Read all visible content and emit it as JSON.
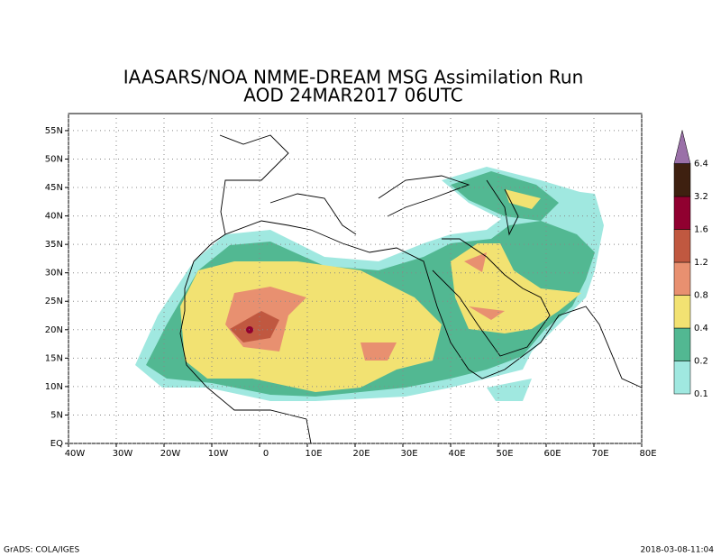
{
  "title": [
    "IAASARS/NOA NMME-DREAM MSG Assimilation Run",
    "AOD  24MAR2017 06UTC"
  ],
  "map": {
    "xlim": [
      -40,
      80
    ],
    "ylim": [
      0,
      58
    ],
    "lon_ticks": [
      {
        "value": -40,
        "label": "40W"
      },
      {
        "value": -30,
        "label": "30W"
      },
      {
        "value": -20,
        "label": "20W"
      },
      {
        "value": -10,
        "label": "10W"
      },
      0,
      {
        "value": 10,
        "label": "10E"
      },
      {
        "value": 20,
        "label": "20E"
      },
      {
        "value": 30,
        "label": "30E"
      },
      {
        "value": 40,
        "label": "40E"
      },
      {
        "value": 50,
        "label": "50E"
      },
      {
        "value": 60,
        "label": "60E"
      },
      {
        "value": 70,
        "label": "70E"
      },
      {
        "value": 80,
        "label": "80E"
      }
    ],
    "lat_ticks": [
      {
        "value": 0,
        "label": "EQ"
      },
      {
        "value": 5,
        "label": "5N"
      },
      {
        "value": 10,
        "label": "10N"
      },
      {
        "value": 15,
        "label": "15N"
      },
      {
        "value": 20,
        "label": "20N"
      },
      {
        "value": 25,
        "label": "25N"
      },
      {
        "value": 30,
        "label": "30N"
      },
      {
        "value": 35,
        "label": "35N"
      },
      {
        "value": 40,
        "label": "40N"
      },
      {
        "value": 45,
        "label": "45N"
      },
      {
        "value": 50,
        "label": "50N"
      },
      {
        "value": 55,
        "label": "55N"
      }
    ]
  },
  "colorbar": {
    "levels": [
      0.1,
      0.2,
      0.4,
      0.8,
      1.2,
      1.6,
      3.2,
      6.4
    ],
    "colors": [
      "#a0e8e0",
      "#52b892",
      "#f2e272",
      "#e89070",
      "#c05840",
      "#900030",
      "#3e2010",
      "#9a70a8"
    ]
  },
  "footer": {
    "left": "GrADS: COLA/IGES",
    "right": "2018-03-08-11:04"
  }
}
